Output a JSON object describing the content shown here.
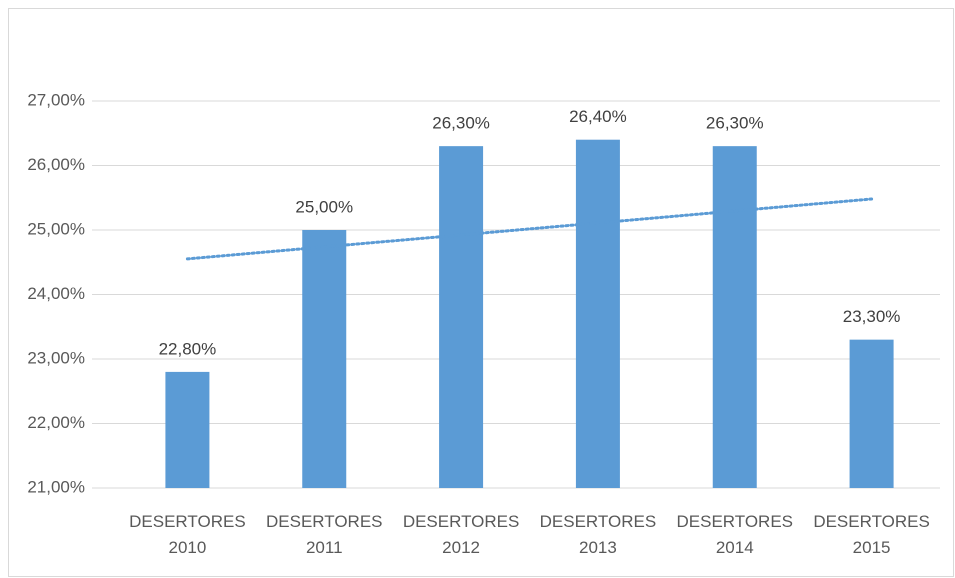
{
  "chart_data": {
    "type": "bar",
    "categories": [
      "DESERTORES 2010",
      "DESERTORES 2011",
      "DESERTORES 2012",
      "DESERTORES 2013",
      "DESERTORES 2014",
      "DESERTORES 2015"
    ],
    "values": [
      22.8,
      25.0,
      26.3,
      26.4,
      26.3,
      23.3
    ],
    "value_labels": [
      "22,80%",
      "25,00%",
      "26,30%",
      "26,40%",
      "26,30%",
      "23,30%"
    ],
    "color": "#5b9bd5",
    "ylim": [
      21,
      27
    ],
    "yticks": [
      {
        "value": 21,
        "label": "21,00%"
      },
      {
        "value": 22,
        "label": "22,00%"
      },
      {
        "value": 23,
        "label": "23,00%"
      },
      {
        "value": 24,
        "label": "24,00%"
      },
      {
        "value": 25,
        "label": "25,00%"
      },
      {
        "value": 26,
        "label": "26,00%"
      },
      {
        "value": 27,
        "label": "27,00%"
      }
    ],
    "grid": true,
    "trendline": "linear",
    "trendline_color": "#5b9bd5"
  }
}
